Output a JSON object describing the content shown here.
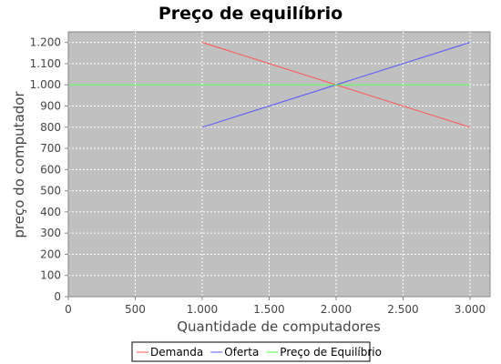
{
  "chart_data": {
    "type": "line",
    "title": "Preço de equilíbrio",
    "xlabel": "Quantidade de computadores",
    "ylabel": "preço do computador",
    "xlim": [
      0,
      3150
    ],
    "ylim": [
      0,
      1250
    ],
    "x_ticks": [
      {
        "value": 0,
        "label": "0"
      },
      {
        "value": 500,
        "label": "500"
      },
      {
        "value": 1000,
        "label": "1.000"
      },
      {
        "value": 1500,
        "label": "1.500"
      },
      {
        "value": 2000,
        "label": "2.000"
      },
      {
        "value": 2500,
        "label": "2.500"
      },
      {
        "value": 3000,
        "label": "3.000"
      }
    ],
    "y_ticks": [
      {
        "value": 0,
        "label": "0"
      },
      {
        "value": 100,
        "label": "100"
      },
      {
        "value": 200,
        "label": "200"
      },
      {
        "value": 300,
        "label": "300"
      },
      {
        "value": 400,
        "label": "400"
      },
      {
        "value": 500,
        "label": "500"
      },
      {
        "value": 600,
        "label": "600"
      },
      {
        "value": 700,
        "label": "700"
      },
      {
        "value": 800,
        "label": "800"
      },
      {
        "value": 900,
        "label": "900"
      },
      {
        "value": 1000,
        "label": "1.000"
      },
      {
        "value": 1100,
        "label": "1.100"
      },
      {
        "value": 1200,
        "label": "1.200"
      }
    ],
    "grid": true,
    "legend_position": "bottom",
    "plot_background": "#c0c0c0",
    "grid_color": "#ffffff",
    "series": [
      {
        "name": "Demanda",
        "color": "#ff5555",
        "x": [
          1000,
          3000
        ],
        "y": [
          1200,
          800
        ]
      },
      {
        "name": "Oferta",
        "color": "#5555ff",
        "x": [
          1000,
          3000
        ],
        "y": [
          800,
          1200
        ]
      },
      {
        "name": "Preço de Equilíbrio",
        "color": "#55ff55",
        "x": [
          0,
          3000
        ],
        "y": [
          1000,
          1000
        ]
      }
    ]
  }
}
